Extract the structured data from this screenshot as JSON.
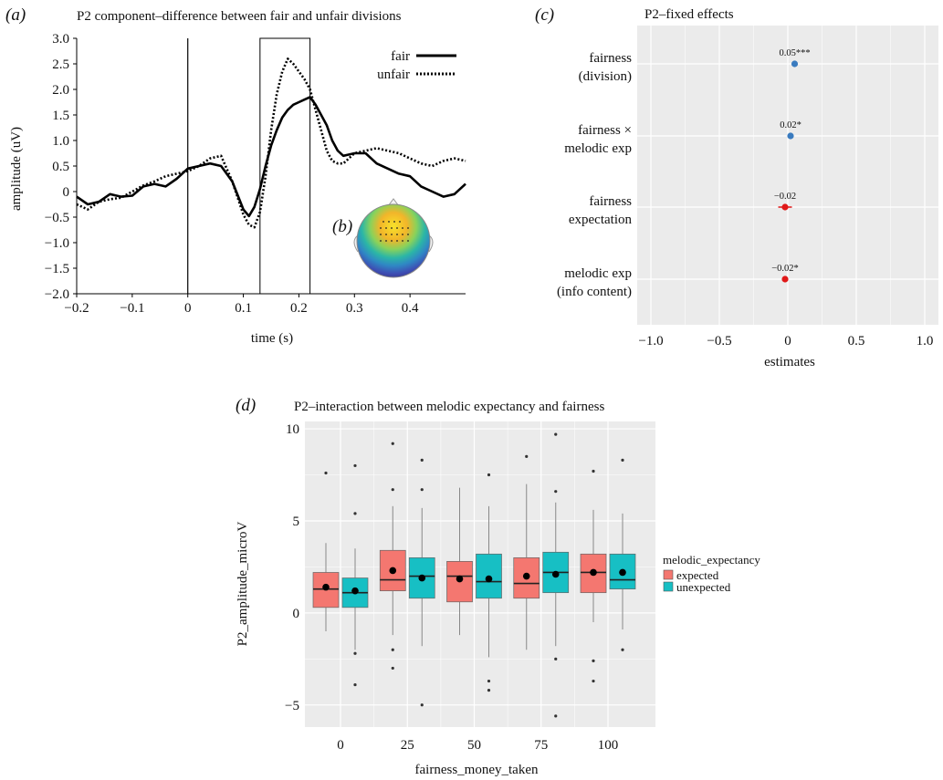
{
  "chart_data": [
    {
      "panel": "(a)",
      "type": "line",
      "title": "P2 component–difference between fair and unfair divisions",
      "xlabel": "time (s)",
      "ylabel": "amplitude (uV)",
      "xlim": [
        -0.2,
        0.5
      ],
      "ylim": [
        -2.0,
        3.0
      ],
      "xticks": [
        "−0.2",
        "−0.1",
        "0",
        "0.1",
        "0.2",
        "0.3",
        "0.4"
      ],
      "yticks": [
        "3.0",
        "2.5",
        "2.0",
        "1.5",
        "1.0",
        "0.5",
        "0",
        "−0.5",
        "−1.0",
        "−1.5",
        "−2.0"
      ],
      "legend_position": "top-right",
      "highlight_window": [
        0.13,
        0.22
      ],
      "x": [
        -0.2,
        -0.18,
        -0.16,
        -0.14,
        -0.12,
        -0.1,
        -0.08,
        -0.06,
        -0.04,
        -0.02,
        0,
        0.02,
        0.04,
        0.06,
        0.08,
        0.1,
        0.11,
        0.12,
        0.13,
        0.14,
        0.15,
        0.16,
        0.17,
        0.18,
        0.19,
        0.2,
        0.21,
        0.22,
        0.23,
        0.24,
        0.25,
        0.26,
        0.27,
        0.28,
        0.3,
        0.32,
        0.34,
        0.36,
        0.38,
        0.4,
        0.42,
        0.44,
        0.46,
        0.48,
        0.5
      ],
      "series": [
        {
          "name": "fair",
          "style": "solid",
          "values": [
            -0.1,
            -0.25,
            -0.2,
            -0.05,
            -0.1,
            -0.08,
            0.1,
            0.15,
            0.1,
            0.25,
            0.45,
            0.5,
            0.55,
            0.5,
            0.2,
            -0.35,
            -0.48,
            -0.3,
            0.05,
            0.5,
            0.9,
            1.2,
            1.45,
            1.6,
            1.7,
            1.75,
            1.8,
            1.85,
            1.7,
            1.5,
            1.3,
            1.0,
            0.8,
            0.7,
            0.75,
            0.75,
            0.55,
            0.45,
            0.35,
            0.3,
            0.1,
            0.0,
            -0.1,
            -0.05,
            0.15
          ]
        },
        {
          "name": "unfair",
          "style": "dotted",
          "values": [
            -0.25,
            -0.35,
            -0.2,
            -0.15,
            -0.12,
            0.0,
            0.12,
            0.2,
            0.3,
            0.35,
            0.4,
            0.5,
            0.65,
            0.7,
            0.2,
            -0.45,
            -0.65,
            -0.7,
            -0.4,
            0.3,
            1.2,
            1.9,
            2.35,
            2.6,
            2.5,
            2.35,
            2.2,
            2.0,
            1.6,
            1.2,
            0.8,
            0.6,
            0.55,
            0.55,
            0.75,
            0.8,
            0.85,
            0.8,
            0.75,
            0.65,
            0.55,
            0.5,
            0.6,
            0.65,
            0.6
          ]
        }
      ]
    },
    {
      "panel": "(b)",
      "type": "other",
      "description_label": "(b)"
    },
    {
      "panel": "(c)",
      "type": "scatter",
      "title": "P2–fixed effects",
      "xlabel": "estimates",
      "xlim": [
        -1.1,
        1.1
      ],
      "xticks": [
        "−1.0",
        "−0.5",
        "0",
        "0.5",
        "1.0"
      ],
      "categories": [
        {
          "line1": "fairness",
          "line2": "(division)"
        },
        {
          "line1": "fairness ×",
          "line2": "melodic exp"
        },
        {
          "line1": "fairness",
          "line2": "expectation"
        },
        {
          "line1": "melodic exp",
          "line2": "(info content)"
        }
      ],
      "values": [
        0.05,
        0.02,
        -0.02,
        -0.02
      ],
      "ci_low": [
        0.04,
        0.01,
        -0.07,
        -0.03
      ],
      "ci_high": [
        0.06,
        0.03,
        0.03,
        -0.01
      ],
      "labels": [
        "0.05***",
        "0.02*",
        "−0.02",
        "−0.02*"
      ],
      "colors": [
        "#3a7bbf",
        "#3a7bbf",
        "#e01818",
        "#e01818"
      ]
    },
    {
      "panel": "(d)",
      "type": "box",
      "title": "P2–interaction between melodic expectancy and fairness",
      "xlabel": "fairness_money_taken",
      "ylabel": "P2_amplitude_microV",
      "xticks": [
        "0",
        "25",
        "50",
        "75",
        "100"
      ],
      "yticks": [
        "10",
        "5",
        "0",
        "−5"
      ],
      "ylim": [
        -6.2,
        10.4
      ],
      "legend_title": "melodic_expectancy",
      "legend_position": "right",
      "series": [
        {
          "name": "expected",
          "color": "#f47770",
          "boxes": [
            {
              "q1": 0.3,
              "median": 1.3,
              "q3": 2.2,
              "wlo": -1.0,
              "whi": 3.8,
              "mean": 1.4,
              "outliers": [
                7.6
              ]
            },
            {
              "q1": 1.2,
              "median": 1.8,
              "q3": 3.4,
              "wlo": -1.2,
              "whi": 5.8,
              "mean": 2.3,
              "outliers": [
                9.2,
                6.7,
                -2.0,
                -3.0
              ]
            },
            {
              "q1": 0.6,
              "median": 2.0,
              "q3": 2.8,
              "wlo": -1.2,
              "whi": 6.8,
              "mean": 1.85,
              "outliers": []
            },
            {
              "q1": 0.8,
              "median": 1.6,
              "q3": 3.0,
              "wlo": -2.0,
              "whi": 7.0,
              "mean": 2.0,
              "outliers": [
                8.5
              ]
            },
            {
              "q1": 1.1,
              "median": 2.2,
              "q3": 3.2,
              "wlo": -0.5,
              "whi": 5.6,
              "mean": 2.2,
              "outliers": [
                7.7,
                -2.6,
                -3.7
              ]
            }
          ]
        },
        {
          "name": "unexpected",
          "color": "#17bfc4",
          "boxes": [
            {
              "q1": 0.3,
              "median": 1.1,
              "q3": 1.9,
              "wlo": -2.0,
              "whi": 3.5,
              "mean": 1.2,
              "outliers": [
                8.0,
                5.4,
                -2.2,
                -3.9
              ]
            },
            {
              "q1": 0.8,
              "median": 2.0,
              "q3": 3.0,
              "wlo": -1.8,
              "whi": 5.7,
              "mean": 1.9,
              "outliers": [
                8.3,
                6.7,
                -5.0
              ]
            },
            {
              "q1": 0.8,
              "median": 1.7,
              "q3": 3.2,
              "wlo": -2.4,
              "whi": 5.8,
              "mean": 1.85,
              "outliers": [
                7.5,
                -3.7,
                -4.2
              ]
            },
            {
              "q1": 1.1,
              "median": 2.2,
              "q3": 3.3,
              "wlo": -1.8,
              "whi": 6.0,
              "mean": 2.1,
              "outliers": [
                9.7,
                6.6,
                -2.5,
                -5.6
              ]
            },
            {
              "q1": 1.3,
              "median": 1.8,
              "q3": 3.2,
              "wlo": -0.9,
              "whi": 5.4,
              "mean": 2.2,
              "outliers": [
                8.3,
                -2.0
              ]
            }
          ]
        }
      ]
    }
  ],
  "panel_labels": {
    "a": "(a)",
    "b": "(b)",
    "c": "(c)",
    "d": "(d)"
  },
  "colors": {
    "fixed_positive": "#3a7bbf",
    "fixed_negative": "#e01818",
    "panel_bg": "#ebebeb",
    "grid": "#ffffff"
  }
}
